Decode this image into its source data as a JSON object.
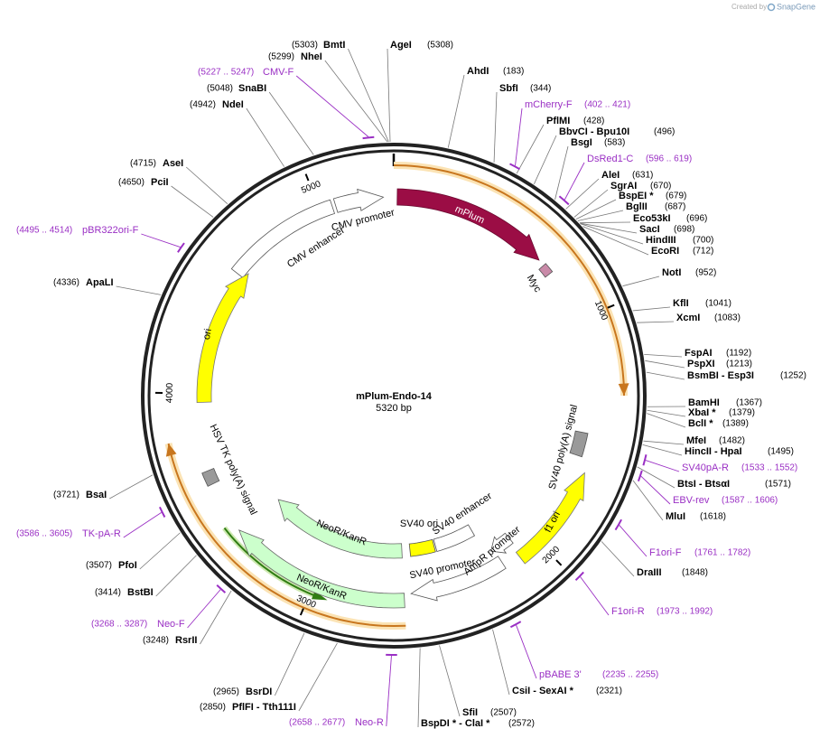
{
  "header": {
    "created_by": "Created by",
    "brand": "SnapGene"
  },
  "plasmid": {
    "name": "mPlum-Endo-14",
    "length": {
      "value": 5320,
      "label": "5320 bp"
    }
  },
  "ring_ticks": [
    1000,
    2000,
    3000,
    4000,
    5000
  ],
  "features": [
    "mPlum",
    "Myc",
    "CMV promoter",
    "CMV enhancer",
    "ori",
    "HSV TK poly(A) signal",
    "NeoR/KanR",
    "NeoR/KanR",
    "SV40 ori",
    "SV40 enhancer",
    "SV40 promoter",
    "AmpR promoter",
    "f1 ori",
    "SV40 poly(A) signal"
  ],
  "sites": [
    {
      "name": "BmtI",
      "position": {
        "value": 5303,
        "label": "(5303)"
      }
    },
    {
      "name": "NheI",
      "position": {
        "value": 5299,
        "label": "(5299)"
      }
    },
    {
      "name": "AgeI",
      "position": {
        "value": 5308,
        "label": "(5308)"
      }
    },
    {
      "name": "SnaBI",
      "position": {
        "value": 5048,
        "label": "(5048)"
      }
    },
    {
      "name": "NdeI",
      "position": {
        "value": 4942,
        "label": "(4942)"
      }
    },
    {
      "name": "AseI",
      "position": {
        "value": 4715,
        "label": "(4715)"
      }
    },
    {
      "name": "PciI",
      "position": {
        "value": 4650,
        "label": "(4650)"
      }
    },
    {
      "name": "ApaLI",
      "position": {
        "value": 4336,
        "label": "(4336)"
      }
    },
    {
      "name": "BsaI",
      "position": {
        "value": 3721,
        "label": "(3721)"
      }
    },
    {
      "name": "PfoI",
      "position": {
        "value": 3507,
        "label": "(3507)"
      }
    },
    {
      "name": "BstBI",
      "position": {
        "value": 3414,
        "label": "(3414)"
      }
    },
    {
      "name": "RsrII",
      "position": {
        "value": 3248,
        "label": "(3248)"
      }
    },
    {
      "name": "BsrDI",
      "position": {
        "value": 2965,
        "label": "(2965)"
      }
    },
    {
      "name": "PflFI - Tth111I",
      "position": {
        "value": 2850,
        "label": "(2850)"
      }
    },
    {
      "name": "BspDI * - ClaI *",
      "position": {
        "value": 2572,
        "label": "(2572)"
      }
    },
    {
      "name": "SfiI",
      "position": {
        "value": 2507,
        "label": "(2507)"
      }
    },
    {
      "name": "CsiI - SexAI *",
      "position": {
        "value": 2321,
        "label": "(2321)"
      }
    },
    {
      "name": "DraIII",
      "position": {
        "value": 1848,
        "label": "(1848)"
      }
    },
    {
      "name": "MluI",
      "position": {
        "value": 1618,
        "label": "(1618)"
      }
    },
    {
      "name": "BtsI - BtsαI",
      "position": {
        "value": 1571,
        "label": "(1571)"
      }
    },
    {
      "name": "HincII - HpaI",
      "position": {
        "value": 1495,
        "label": "(1495)"
      }
    },
    {
      "name": "MfeI",
      "position": {
        "value": 1482,
        "label": "(1482)"
      }
    },
    {
      "name": "BclI *",
      "position": {
        "value": 1389,
        "label": "(1389)"
      }
    },
    {
      "name": "XbaI *",
      "position": {
        "value": 1379,
        "label": "(1379)"
      }
    },
    {
      "name": "BamHI",
      "position": {
        "value": 1367,
        "label": "(1367)"
      }
    },
    {
      "name": "BsmBI - Esp3I",
      "position": {
        "value": 1252,
        "label": "(1252)"
      }
    },
    {
      "name": "PspXI",
      "position": {
        "value": 1213,
        "label": "(1213)"
      }
    },
    {
      "name": "FspAI",
      "position": {
        "value": 1192,
        "label": "(1192)"
      }
    },
    {
      "name": "XcmI",
      "position": {
        "value": 1083,
        "label": "(1083)"
      }
    },
    {
      "name": "KflI",
      "position": {
        "value": 1041,
        "label": "(1041)"
      }
    },
    {
      "name": "NotI",
      "position": {
        "value": 952,
        "label": "(952)"
      }
    },
    {
      "name": "EcoRI",
      "position": {
        "value": 712,
        "label": "(712)"
      }
    },
    {
      "name": "HindIII",
      "position": {
        "value": 700,
        "label": "(700)"
      }
    },
    {
      "name": "SacI",
      "position": {
        "value": 698,
        "label": "(698)"
      }
    },
    {
      "name": "Eco53kI",
      "position": {
        "value": 696,
        "label": "(696)"
      }
    },
    {
      "name": "BglII",
      "position": {
        "value": 687,
        "label": "(687)"
      }
    },
    {
      "name": "BspEI *",
      "position": {
        "value": 679,
        "label": "(679)"
      }
    },
    {
      "name": "SgrAI",
      "position": {
        "value": 670,
        "label": "(670)"
      }
    },
    {
      "name": "AleI",
      "position": {
        "value": 631,
        "label": "(631)"
      }
    },
    {
      "name": "BsgI",
      "position": {
        "value": 583,
        "label": "(583)"
      }
    },
    {
      "name": "BbvCI - Bpu10I",
      "position": {
        "value": 496,
        "label": "(496)"
      }
    },
    {
      "name": "PflMI",
      "position": {
        "value": 428,
        "label": "(428)"
      }
    },
    {
      "name": "SbfI",
      "position": {
        "value": 344,
        "label": "(344)"
      }
    },
    {
      "name": "AhdI",
      "position": {
        "value": 183,
        "label": "(183)"
      }
    }
  ],
  "primers": [
    {
      "name": "CMV-F",
      "range": {
        "start": 5227,
        "end": 5247,
        "label": "(5227 .. 5247)"
      }
    },
    {
      "name": "pBR322ori-F",
      "range": {
        "start": 4495,
        "end": 4514,
        "label": "(4495 .. 4514)"
      }
    },
    {
      "name": "TK-pA-R",
      "range": {
        "start": 3586,
        "end": 3605,
        "label": "(3586 .. 3605)"
      }
    },
    {
      "name": "Neo-F",
      "range": {
        "start": 3268,
        "end": 3287,
        "label": "(3268 .. 3287)"
      }
    },
    {
      "name": "Neo-R",
      "range": {
        "start": 2658,
        "end": 2677,
        "label": "(2658 .. 2677)"
      }
    },
    {
      "name": "pBABE 3'",
      "range": {
        "start": 2235,
        "end": 2255,
        "label": "(2235 .. 2255)"
      }
    },
    {
      "name": "F1ori-R",
      "range": {
        "start": 1973,
        "end": 1992,
        "label": "(1973 .. 1992)"
      }
    },
    {
      "name": "F1ori-F",
      "range": {
        "start": 1761,
        "end": 1782,
        "label": "(1761 .. 1782)"
      }
    },
    {
      "name": "EBV-rev",
      "range": {
        "start": 1587,
        "end": 1606,
        "label": "(1587 .. 1606)"
      }
    },
    {
      "name": "SV40pA-R",
      "range": {
        "start": 1533,
        "end": 1552,
        "label": "(1533 .. 1552)"
      }
    },
    {
      "name": "DsRed1-C",
      "range": {
        "start": 596,
        "end": 619,
        "label": "(596 .. 619)"
      }
    },
    {
      "name": "mCherry-F",
      "range": {
        "start": 402,
        "end": 421,
        "label": "(402 .. 421)"
      }
    }
  ]
}
